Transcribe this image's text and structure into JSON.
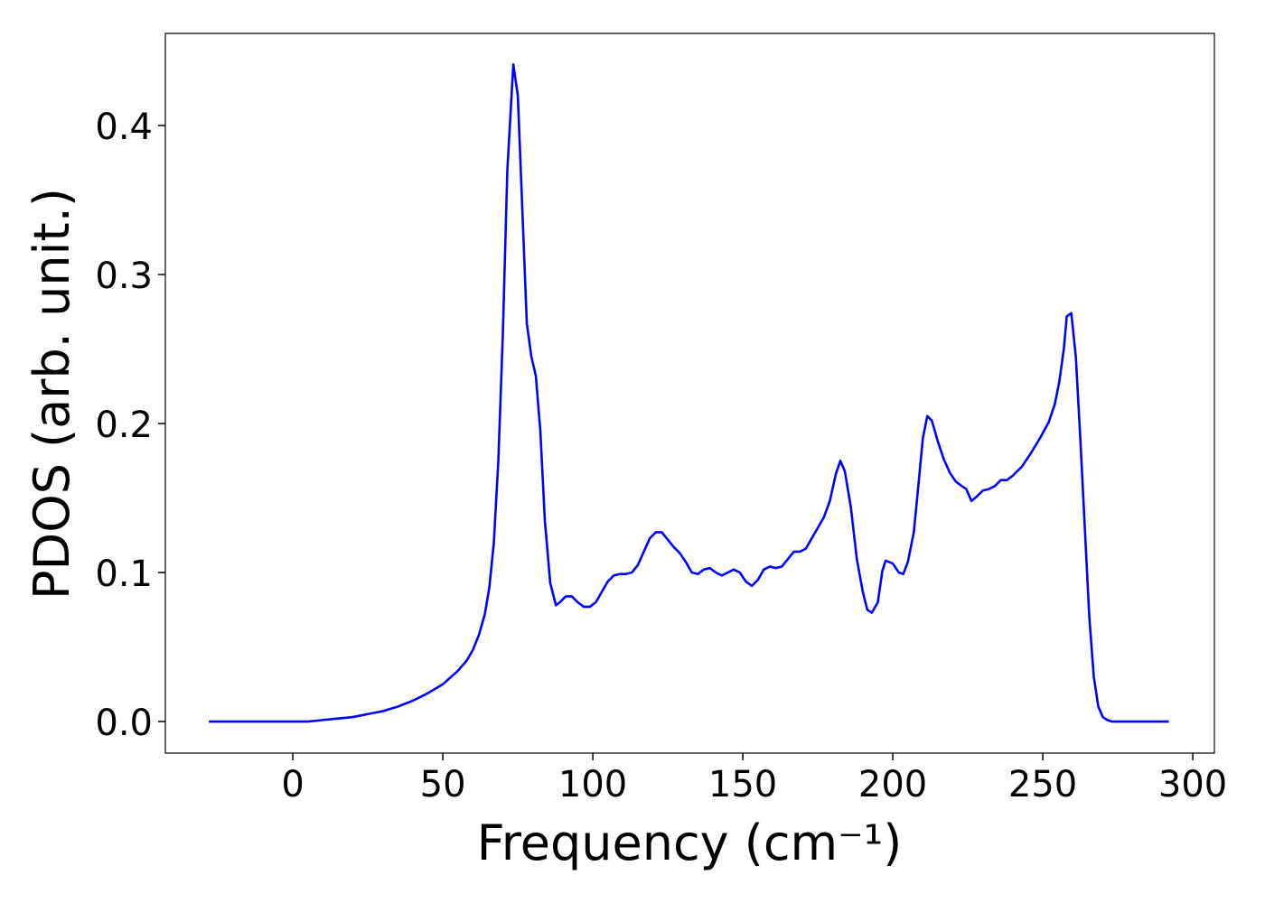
{
  "chart_data": {
    "type": "line",
    "xlabel": "Frequency (cm⁻¹)",
    "ylabel": "PDOS (arb. unit.)",
    "x": [
      -28,
      -20,
      -10,
      0,
      5,
      10,
      15,
      20,
      25,
      30,
      35,
      40,
      45,
      50,
      55,
      58,
      60,
      62,
      64,
      65.5,
      67,
      68.5,
      70,
      71.5,
      73.5,
      75,
      78,
      79.5,
      81,
      82.5,
      84,
      85.8,
      87.7,
      89,
      91,
      93,
      95,
      97,
      99,
      101,
      103,
      105,
      107,
      109,
      111,
      113,
      115,
      117,
      119,
      121,
      123,
      125,
      127,
      129,
      131,
      133,
      135,
      137,
      139,
      141,
      143,
      145,
      147,
      149,
      151,
      153,
      155,
      157,
      159,
      161,
      163,
      165,
      167,
      169,
      171,
      173,
      175,
      177,
      179,
      181,
      182.5,
      184,
      186,
      188,
      190,
      191.5,
      193,
      195,
      196.5,
      197.6,
      200,
      202,
      203.5,
      205,
      207,
      208.5,
      210,
      211.5,
      213,
      215,
      217,
      219,
      221,
      223,
      224.5,
      226.2,
      228,
      230,
      232,
      234,
      236,
      238,
      240,
      243,
      246,
      249,
      252,
      254,
      255.5,
      257,
      258,
      259.5,
      261,
      262.5,
      264,
      265.5,
      267,
      268.5,
      270,
      271.5,
      273,
      292
    ],
    "series": [
      {
        "color": "#0000ff",
        "values": [
          0,
          0,
          0,
          0,
          0,
          0.001,
          0.002,
          0.003,
          0.005,
          0.007,
          0.01,
          0.014,
          0.019,
          0.025,
          0.034,
          0.041,
          0.048,
          0.058,
          0.072,
          0.09,
          0.12,
          0.175,
          0.26,
          0.37,
          0.441,
          0.42,
          0.267,
          0.245,
          0.232,
          0.195,
          0.135,
          0.093,
          0.078,
          0.08,
          0.084,
          0.084,
          0.08,
          0.077,
          0.077,
          0.08,
          0.087,
          0.094,
          0.098,
          0.099,
          0.099,
          0.1,
          0.105,
          0.114,
          0.123,
          0.127,
          0.127,
          0.122,
          0.117,
          0.113,
          0.107,
          0.1,
          0.099,
          0.102,
          0.103,
          0.1,
          0.098,
          0.1,
          0.102,
          0.1,
          0.094,
          0.091,
          0.095,
          0.102,
          0.104,
          0.103,
          0.104,
          0.109,
          0.114,
          0.114,
          0.116,
          0.123,
          0.13,
          0.137,
          0.148,
          0.166,
          0.175,
          0.168,
          0.144,
          0.109,
          0.087,
          0.075,
          0.073,
          0.08,
          0.101,
          0.108,
          0.106,
          0.1,
          0.099,
          0.107,
          0.127,
          0.158,
          0.19,
          0.205,
          0.202,
          0.188,
          0.176,
          0.167,
          0.161,
          0.158,
          0.156,
          0.148,
          0.151,
          0.155,
          0.156,
          0.158,
          0.162,
          0.162,
          0.165,
          0.171,
          0.18,
          0.19,
          0.201,
          0.213,
          0.228,
          0.25,
          0.272,
          0.274,
          0.245,
          0.19,
          0.13,
          0.07,
          0.03,
          0.01,
          0.003,
          0.001,
          0,
          0
        ]
      }
    ],
    "xlim": [
      -42.5,
      307.2
    ],
    "ylim": [
      -0.0212,
      0.4618
    ],
    "xticks": [
      0,
      50,
      100,
      150,
      200,
      250,
      300
    ],
    "yticks": [
      {
        "value": 0,
        "label": "0.0"
      },
      0.1,
      0.2,
      0.3,
      0.4
    ],
    "grid": false
  }
}
